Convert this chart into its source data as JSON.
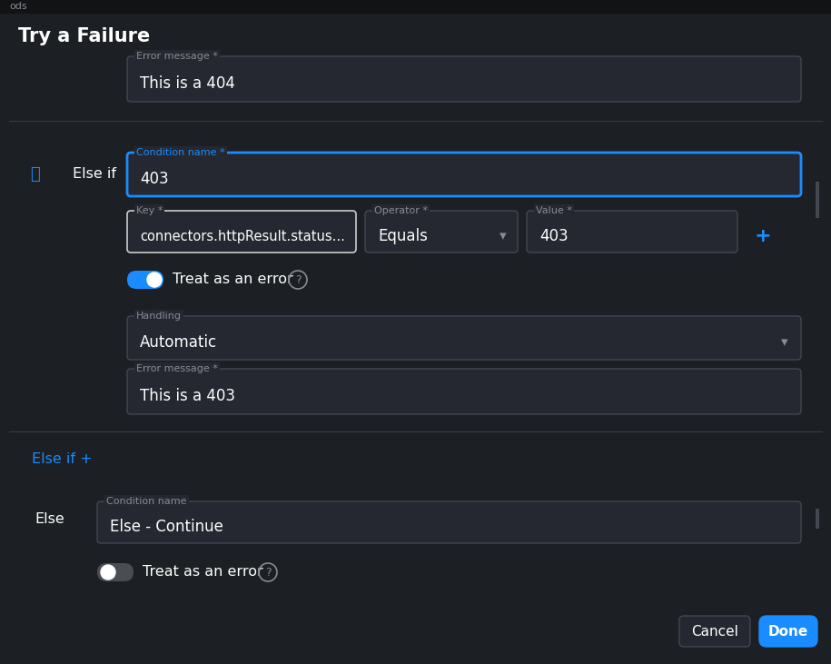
{
  "bg_color": "#1c1f23",
  "topbar_color": "#111315",
  "input_bg": "#252830",
  "input_border": "#444750",
  "blue_accent": "#1a8cff",
  "blue_border": "#1a8cff",
  "text_white": "#ffffff",
  "text_gray": "#888b90",
  "text_label": "#888b90",
  "separator_color": "#383b40",
  "toggle_on_color": "#1a8cff",
  "toggle_off_color": "#4a4d52",
  "done_btn_color": "#1a8cff",
  "cancel_btn_color": "#252830",
  "scrollbar_color": "#444750",
  "top_bar_text": "ods",
  "title": "Try a Failure",
  "error_msg_label_1": "Error message *",
  "error_msg_value_1": "This is a 404",
  "else_if_label": "Else if",
  "condition_name_label": "Condition name *",
  "condition_name_value": "403",
  "key_label": "Key *",
  "key_value": "connectors.httpResult.status...",
  "operator_label": "Operator *",
  "operator_value": "Equals",
  "value_label": "Value *",
  "value_value": "403",
  "treat_error_label": "Treat as an error",
  "handling_label": "Handling",
  "handling_value": "Automatic",
  "error_msg_label_2": "Error message *",
  "error_msg_value_2": "This is a 403",
  "else_if_plus": "Else if +",
  "else_label": "Else",
  "condition_name_label_2": "Condition name",
  "condition_name_value_2": "Else - Continue",
  "treat_error_label_2": "Treat as an error",
  "cancel_btn": "Cancel",
  "done_btn": "Done"
}
